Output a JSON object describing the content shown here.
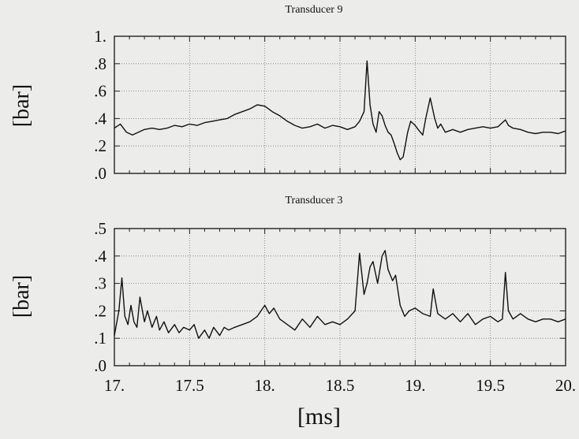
{
  "xlabel": "[ms]",
  "chart_data": [
    {
      "type": "line",
      "title": "Transducer 9",
      "ylabel": "[bar]",
      "xlim": [
        17.0,
        20.0
      ],
      "ylim": [
        0.0,
        1.0
      ],
      "yticks": [
        0.0,
        0.2,
        0.4,
        0.6,
        0.8,
        1.0
      ],
      "ytick_labels": [
        ".0",
        ".2",
        ".4",
        ".6",
        ".8",
        "1."
      ],
      "grid": true,
      "series": [
        {
          "x": [
            17.0,
            17.04,
            17.08,
            17.12,
            17.16,
            17.2,
            17.25,
            17.3,
            17.35,
            17.4,
            17.45,
            17.5,
            17.55,
            17.6,
            17.65,
            17.7,
            17.75,
            17.8,
            17.85,
            17.9,
            17.95,
            18.0,
            18.05,
            18.1,
            18.15,
            18.2,
            18.25,
            18.3,
            18.35,
            18.4,
            18.45,
            18.5,
            18.55,
            18.6,
            18.63,
            18.66,
            18.68,
            18.7,
            18.72,
            18.74,
            18.76,
            18.78,
            18.8,
            18.82,
            18.84,
            18.86,
            18.88,
            18.9,
            18.92,
            18.95,
            18.97,
            19.0,
            19.02,
            19.05,
            19.07,
            19.1,
            19.13,
            19.15,
            19.17,
            19.2,
            19.25,
            19.3,
            19.35,
            19.4,
            19.45,
            19.5,
            19.55,
            19.6,
            19.62,
            19.65,
            19.7,
            19.75,
            19.8,
            19.85,
            19.9,
            19.95,
            20.0
          ],
          "y": [
            0.33,
            0.36,
            0.3,
            0.28,
            0.3,
            0.32,
            0.33,
            0.32,
            0.33,
            0.35,
            0.34,
            0.36,
            0.35,
            0.37,
            0.38,
            0.39,
            0.4,
            0.43,
            0.45,
            0.47,
            0.5,
            0.49,
            0.45,
            0.42,
            0.38,
            0.35,
            0.33,
            0.34,
            0.36,
            0.33,
            0.35,
            0.34,
            0.32,
            0.34,
            0.38,
            0.45,
            0.82,
            0.5,
            0.36,
            0.3,
            0.45,
            0.42,
            0.35,
            0.3,
            0.28,
            0.22,
            0.15,
            0.1,
            0.12,
            0.3,
            0.38,
            0.35,
            0.32,
            0.28,
            0.4,
            0.55,
            0.4,
            0.33,
            0.36,
            0.3,
            0.32,
            0.3,
            0.32,
            0.33,
            0.34,
            0.33,
            0.34,
            0.39,
            0.35,
            0.33,
            0.32,
            0.3,
            0.29,
            0.3,
            0.3,
            0.29,
            0.31
          ]
        }
      ]
    },
    {
      "type": "line",
      "title": "Transducer 3",
      "ylabel": "[bar]",
      "xlim": [
        17.0,
        20.0
      ],
      "ylim": [
        0.0,
        0.5
      ],
      "yticks": [
        0.0,
        0.1,
        0.2,
        0.3,
        0.4,
        0.5
      ],
      "ytick_labels": [
        ".0",
        ".1",
        ".2",
        ".3",
        ".4",
        ".5"
      ],
      "xticks": [
        17.0,
        17.5,
        18.0,
        18.5,
        19.0,
        19.5,
        20.0
      ],
      "xtick_labels": [
        "17.",
        "17.5",
        "18.",
        "18.5",
        "19.",
        "19.5",
        "20."
      ],
      "grid": true,
      "series": [
        {
          "x": [
            17.0,
            17.03,
            17.05,
            17.07,
            17.09,
            17.11,
            17.13,
            17.15,
            17.17,
            17.2,
            17.22,
            17.25,
            17.28,
            17.3,
            17.33,
            17.36,
            17.4,
            17.43,
            17.46,
            17.5,
            17.53,
            17.56,
            17.6,
            17.63,
            17.66,
            17.7,
            17.73,
            17.76,
            17.8,
            17.85,
            17.9,
            17.95,
            18.0,
            18.03,
            18.06,
            18.1,
            18.15,
            18.2,
            18.25,
            18.3,
            18.35,
            18.4,
            18.45,
            18.5,
            18.55,
            18.6,
            18.63,
            18.66,
            18.68,
            18.7,
            18.72,
            18.75,
            18.78,
            18.8,
            18.82,
            18.85,
            18.87,
            18.9,
            18.93,
            18.96,
            19.0,
            19.05,
            19.1,
            19.12,
            19.15,
            19.2,
            19.25,
            19.3,
            19.35,
            19.4,
            19.45,
            19.5,
            19.55,
            19.58,
            19.6,
            19.62,
            19.65,
            19.7,
            19.75,
            19.8,
            19.85,
            19.9,
            19.95,
            20.0
          ],
          "y": [
            0.11,
            0.2,
            0.32,
            0.18,
            0.15,
            0.22,
            0.16,
            0.14,
            0.25,
            0.16,
            0.2,
            0.14,
            0.18,
            0.13,
            0.16,
            0.12,
            0.15,
            0.12,
            0.14,
            0.13,
            0.15,
            0.1,
            0.13,
            0.1,
            0.14,
            0.11,
            0.14,
            0.13,
            0.14,
            0.15,
            0.16,
            0.18,
            0.22,
            0.19,
            0.21,
            0.17,
            0.15,
            0.13,
            0.17,
            0.14,
            0.18,
            0.15,
            0.16,
            0.15,
            0.17,
            0.2,
            0.41,
            0.26,
            0.3,
            0.36,
            0.38,
            0.3,
            0.4,
            0.42,
            0.35,
            0.31,
            0.33,
            0.22,
            0.18,
            0.2,
            0.21,
            0.19,
            0.18,
            0.28,
            0.19,
            0.17,
            0.19,
            0.16,
            0.19,
            0.15,
            0.17,
            0.18,
            0.16,
            0.17,
            0.34,
            0.2,
            0.17,
            0.19,
            0.17,
            0.16,
            0.17,
            0.17,
            0.16,
            0.17
          ]
        }
      ]
    }
  ]
}
